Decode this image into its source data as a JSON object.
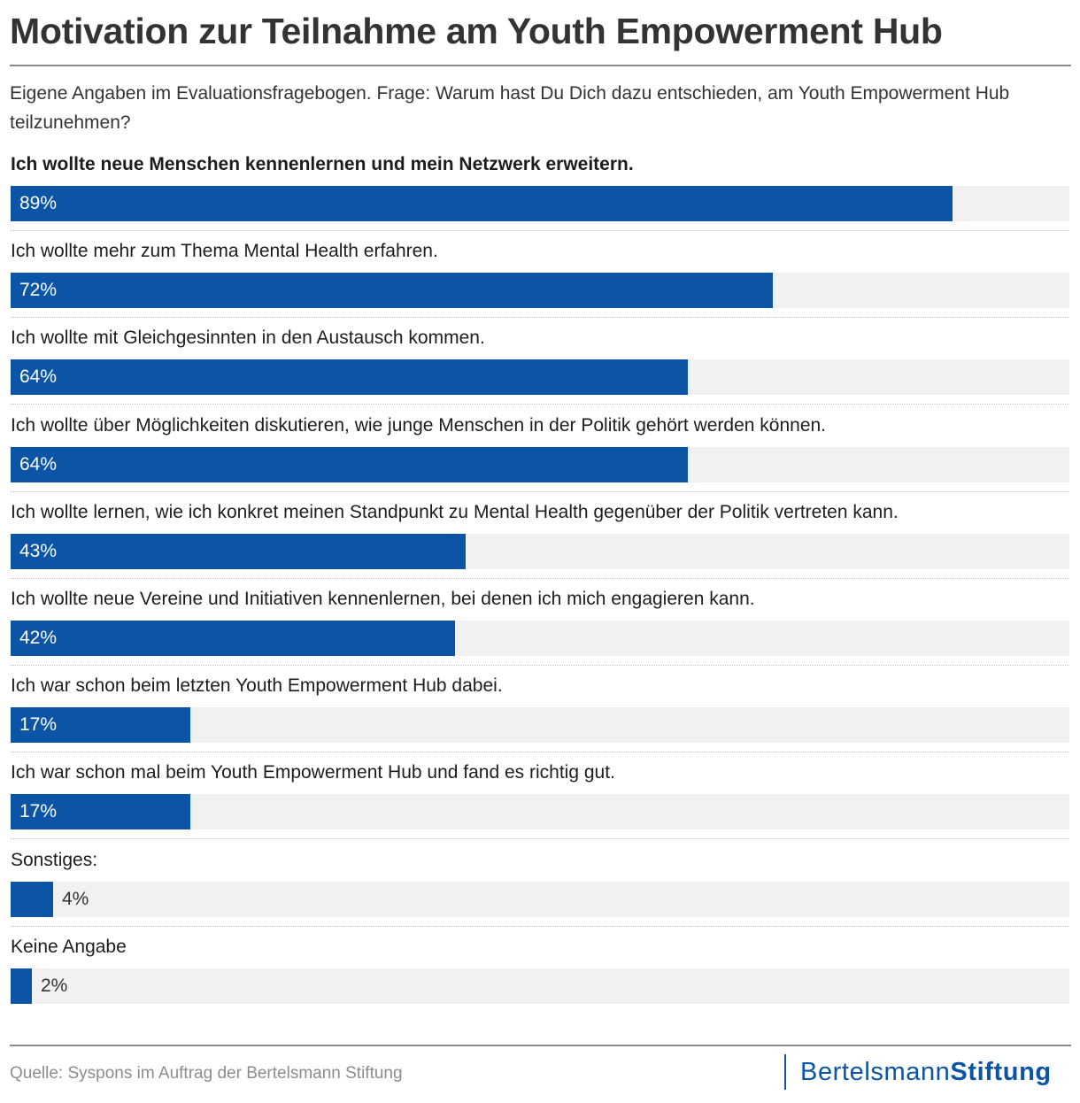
{
  "title": "Motivation zur Teilnahme am Youth Empowerment Hub",
  "subtitle": "Eigene Angaben im Evaluationsfragebogen. Frage: Warum hast Du Dich dazu entschieden, am Youth Empowerment Hub teilzunehmen?",
  "chart_data": {
    "type": "bar",
    "orientation": "horizontal",
    "title": "Motivation zur Teilnahme am Youth Empowerment Hub",
    "unit": "%",
    "xlim": [
      0,
      100
    ],
    "categories": [
      "Ich wollte neue Menschen kennenlernen und mein Netzwerk erweitern.",
      "Ich wollte mehr zum Thema Mental Health erfahren.",
      "Ich wollte mit Gleichgesinnten in den Austausch kommen.",
      "Ich wollte über Möglichkeiten diskutieren, wie junge Menschen in der Politik gehört werden können.",
      "Ich wollte lernen, wie ich konkret meinen Standpunkt zu Mental Health gegenüber der Politik vertreten kann.",
      "Ich wollte neue Vereine und Initiativen kennenlernen, bei denen ich mich engagieren kann.",
      "Ich war schon beim letzten Youth Empowerment Hub dabei.",
      "Ich war schon mal beim Youth Empowerment Hub und fand es richtig gut.",
      "Sonstiges:",
      "Keine Angabe"
    ],
    "values": [
      89,
      72,
      64,
      64,
      43,
      42,
      17,
      17,
      4,
      2
    ],
    "value_labels": [
      "89%",
      "72%",
      "64%",
      "64%",
      "43%",
      "42%",
      "17%",
      "17%",
      "4%",
      "2%"
    ],
    "highlighted_index": 0
  },
  "colors": {
    "bar": "#0c55a6",
    "bar_background": "#f1f1f1",
    "title": "#333333",
    "source": "#8c8c8c"
  },
  "footer": {
    "source": "Quelle: Syspons im Auftrag der Bertelsmann Stiftung",
    "logo_part1": "Bertelsmann",
    "logo_part2": "Stiftung"
  }
}
